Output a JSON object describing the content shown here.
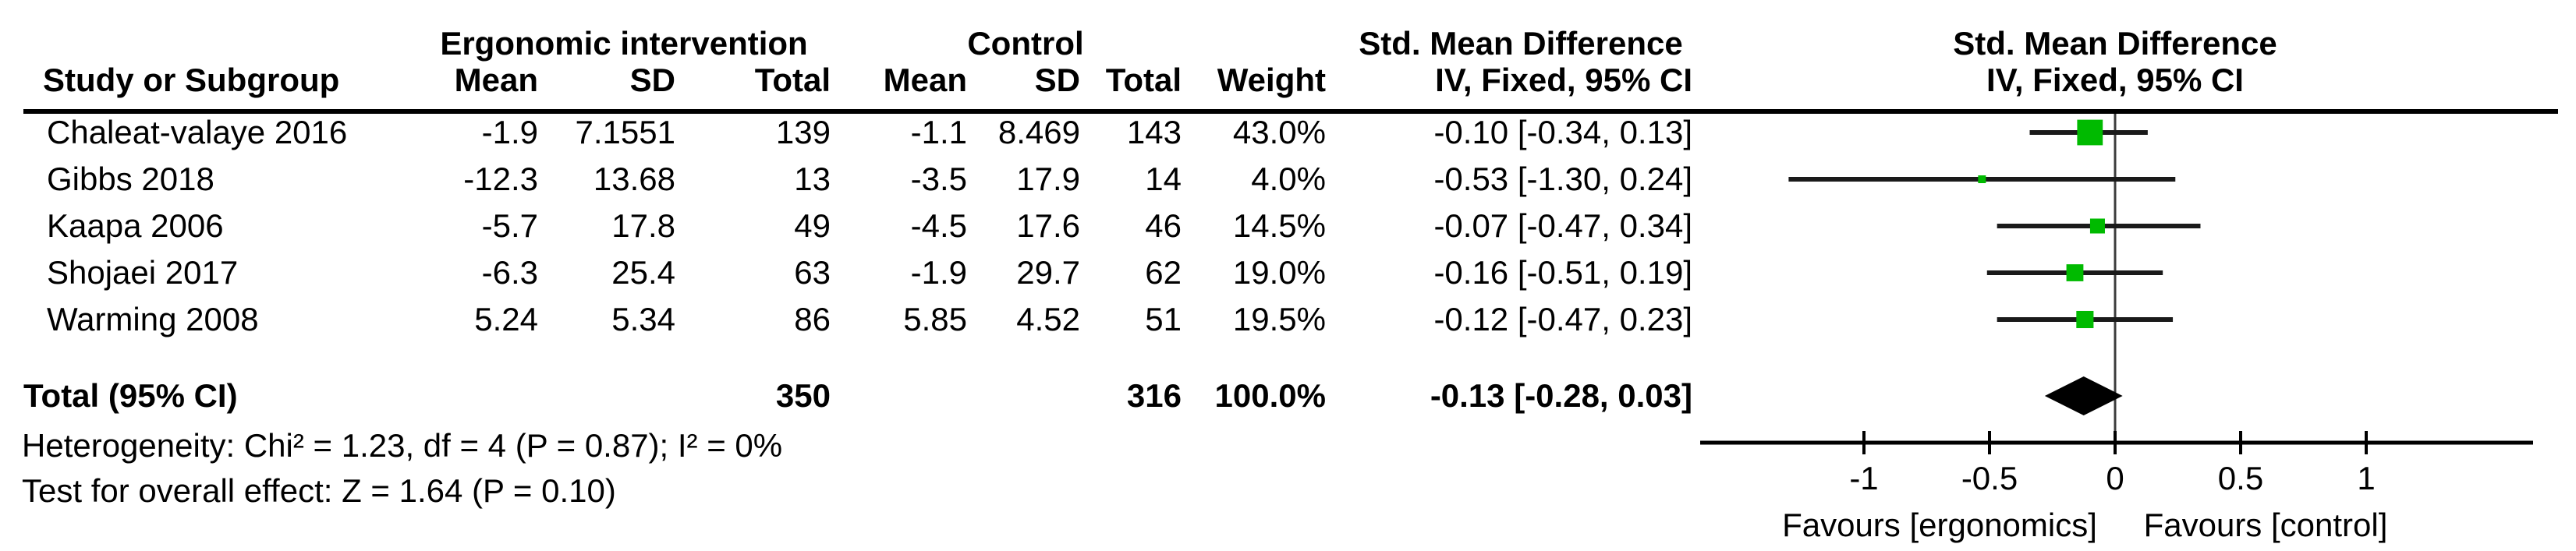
{
  "header": {
    "group1": "Ergonomic intervention",
    "group2": "Control",
    "study_col": "Study or Subgroup",
    "mean_col": "Mean",
    "sd_col": "SD",
    "total_col": "Total",
    "weight_col": "Weight",
    "effect_col_line1": "Std. Mean Difference",
    "effect_col_line2": "IV, Fixed, 95% CI",
    "plot_col_line1": "Std. Mean Difference",
    "plot_col_line2": "IV, Fixed, 95% CI"
  },
  "rows": [
    {
      "study": "Chaleat-valaye 2016",
      "i_mean": "-1.9",
      "i_sd": "7.1551",
      "i_total": "139",
      "c_mean": "-1.1",
      "c_sd": "8.469",
      "c_total": "143",
      "weight": "43.0%",
      "effect": "-0.10 [-0.34, 0.13]"
    },
    {
      "study": "Gibbs 2018",
      "i_mean": "-12.3",
      "i_sd": "13.68",
      "i_total": "13",
      "c_mean": "-3.5",
      "c_sd": "17.9",
      "c_total": "14",
      "weight": "4.0%",
      "effect": "-0.53 [-1.30, 0.24]"
    },
    {
      "study": "Kaapa 2006",
      "i_mean": "-5.7",
      "i_sd": "17.8",
      "i_total": "49",
      "c_mean": "-4.5",
      "c_sd": "17.6",
      "c_total": "46",
      "weight": "14.5%",
      "effect": "-0.07 [-0.47, 0.34]"
    },
    {
      "study": "Shojaei 2017",
      "i_mean": "-6.3",
      "i_sd": "25.4",
      "i_total": "63",
      "c_mean": "-1.9",
      "c_sd": "29.7",
      "c_total": "62",
      "weight": "19.0%",
      "effect": "-0.16 [-0.51, 0.19]"
    },
    {
      "study": "Warming 2008",
      "i_mean": "5.24",
      "i_sd": "5.34",
      "i_total": "86",
      "c_mean": "5.85",
      "c_sd": "4.52",
      "c_total": "51",
      "weight": "19.5%",
      "effect": "-0.12 [-0.47, 0.23]"
    }
  ],
  "total_row": {
    "label": "Total (95% CI)",
    "i_total": "350",
    "c_total": "316",
    "weight": "100.0%",
    "effect": "-0.13 [-0.28, 0.03]"
  },
  "footnotes": {
    "heterogeneity": "Heterogeneity: Chi² = 1.23, df = 4 (P = 0.87); I² = 0%",
    "overall_effect": "Test for overall effect: Z = 1.64 (P = 0.10)"
  },
  "chart_data": {
    "type": "scatter",
    "subtype": "forest-plot",
    "title": "Std. Mean Difference, IV, Fixed, 95% CI",
    "x_ticks": [
      -1,
      -0.5,
      0,
      0.5,
      1
    ],
    "x_tick_labels": [
      "-1",
      "-0.5",
      "0",
      "0.5",
      "1"
    ],
    "xlim": [
      -1.65,
      1.66
    ],
    "x_axis_left_label": "Favours [ergonomics]",
    "x_axis_right_label": "Favours [control]",
    "marker_color": "#00ba00",
    "line_color": "#1a1a1a",
    "studies": [
      {
        "name": "Chaleat-valaye 2016",
        "estimate": -0.1,
        "ci_low": -0.34,
        "ci_high": 0.13,
        "weight_pct": 43.0
      },
      {
        "name": "Gibbs 2018",
        "estimate": -0.53,
        "ci_low": -1.3,
        "ci_high": 0.24,
        "weight_pct": 4.0
      },
      {
        "name": "Kaapa 2006",
        "estimate": -0.07,
        "ci_low": -0.47,
        "ci_high": 0.34,
        "weight_pct": 14.5
      },
      {
        "name": "Shojaei 2017",
        "estimate": -0.16,
        "ci_low": -0.51,
        "ci_high": 0.19,
        "weight_pct": 19.0
      },
      {
        "name": "Warming 2008",
        "estimate": -0.12,
        "ci_low": -0.47,
        "ci_high": 0.23,
        "weight_pct": 19.5
      }
    ],
    "total": {
      "estimate": -0.13,
      "ci_low": -0.28,
      "ci_high": 0.03
    }
  }
}
